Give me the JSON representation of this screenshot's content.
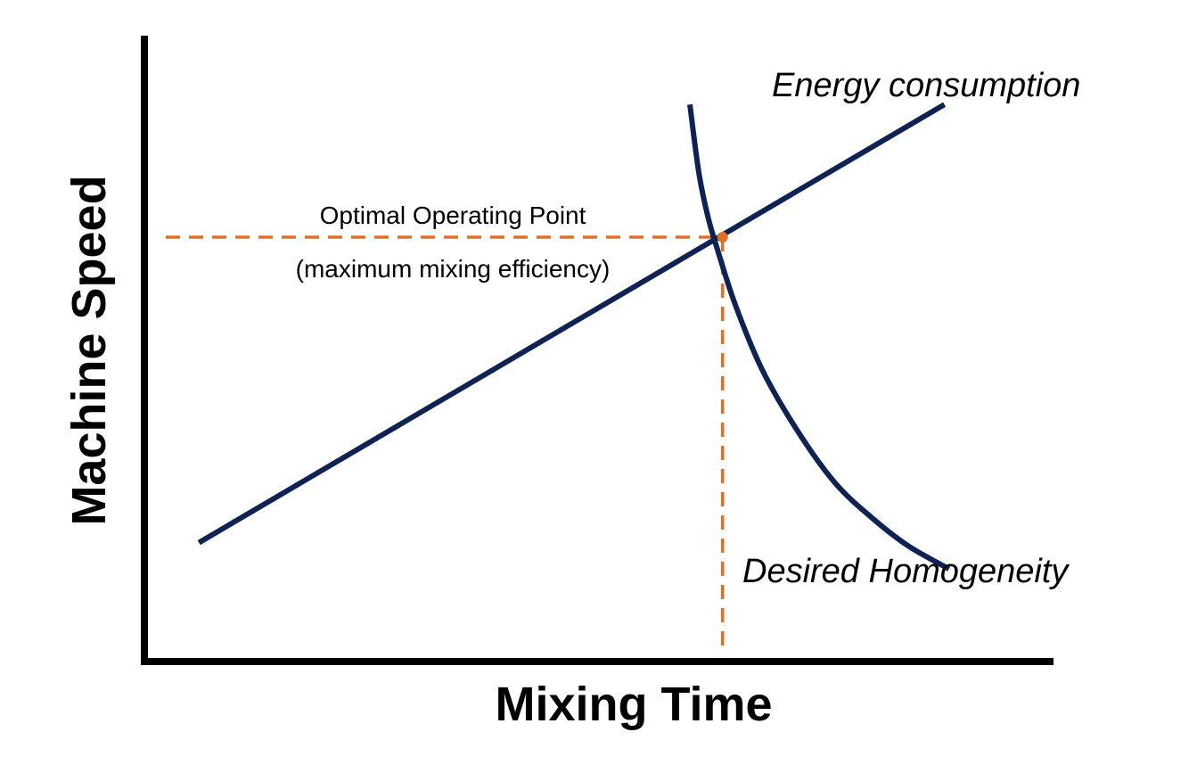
{
  "chart_data": {
    "type": "line",
    "title": "",
    "xlabel": "Mixing Time",
    "ylabel": "Machine Speed",
    "xlim": [
      0,
      100
    ],
    "ylim": [
      0,
      100
    ],
    "grid": false,
    "axis_tick_labels": false,
    "series": [
      {
        "name": "Energy consumption",
        "color": "#0f2254",
        "x": [
          6,
          88
        ],
        "y": [
          19,
          89
        ]
      },
      {
        "name": "Desired Homogeneity",
        "color": "#0f2254",
        "x": [
          60,
          61,
          62,
          63,
          65,
          68,
          72,
          76,
          80,
          84,
          88.5
        ],
        "y": [
          89,
          78,
          71,
          66,
          57,
          46.5,
          36.5,
          28.5,
          23,
          18.5,
          14.8
        ]
      }
    ],
    "annotations": [
      {
        "id": "optimal-point",
        "line1": "Optimal Operating Point",
        "line2": "(maximum mixing efficiency)",
        "x": 63.6,
        "y": 67.8,
        "color": "#e07028"
      }
    ]
  }
}
